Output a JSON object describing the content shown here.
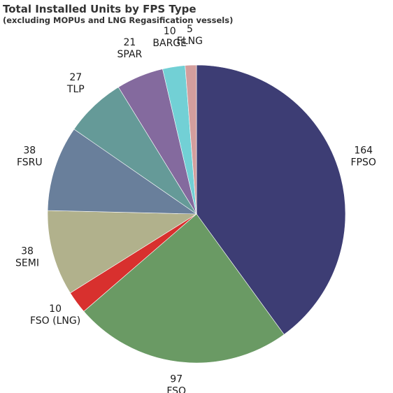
{
  "chart_data": {
    "type": "pie",
    "title": "Total Installed Units by FPS Type",
    "subtitle": "(excluding MOPUs and LNG Regasification vessels)",
    "slices": [
      {
        "label": "FPSO",
        "value": 164,
        "color": "#3d3d74"
      },
      {
        "label": "FSO",
        "value": 97,
        "color": "#6a9a64"
      },
      {
        "label": "FSO (LNG)",
        "value": 10,
        "color": "#d8302e"
      },
      {
        "label": "SEMI",
        "value": 38,
        "color": "#b1b18c"
      },
      {
        "label": "FSRU",
        "value": 38,
        "color": "#697f9b"
      },
      {
        "label": "TLP",
        "value": 27,
        "color": "#659a98"
      },
      {
        "label": "SPAR",
        "value": 21,
        "color": "#846a9e"
      },
      {
        "label": "BARGE",
        "value": 10,
        "color": "#72d0d5"
      },
      {
        "label": "FLNG",
        "value": 5,
        "color": "#d39e9d"
      }
    ]
  }
}
